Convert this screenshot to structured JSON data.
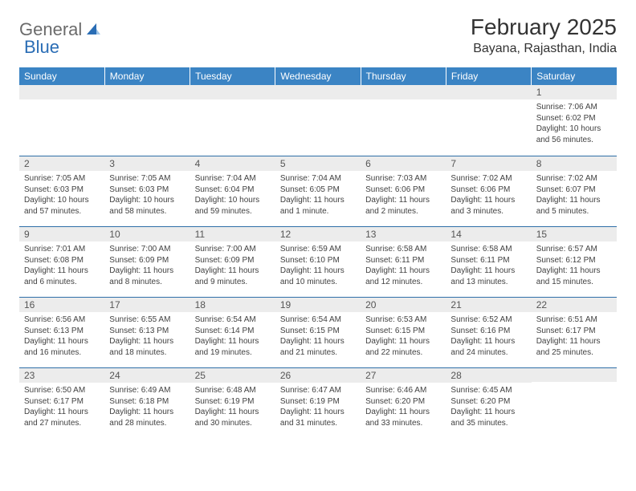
{
  "logo": {
    "text1": "General",
    "text2": "Blue"
  },
  "title": {
    "month": "February 2025",
    "location": "Bayana, Rajasthan, India"
  },
  "colors": {
    "header_bg": "#3b84c4",
    "header_fg": "#ffffff",
    "daynum_bg": "#ececec",
    "row_border": "#2f6fa8",
    "logo_gray": "#6b6b6b",
    "logo_blue": "#2a6db5"
  },
  "dayHeaders": [
    "Sunday",
    "Monday",
    "Tuesday",
    "Wednesday",
    "Thursday",
    "Friday",
    "Saturday"
  ],
  "weeks": [
    [
      {
        "n": "",
        "sr": "",
        "ss": "",
        "dl": ""
      },
      {
        "n": "",
        "sr": "",
        "ss": "",
        "dl": ""
      },
      {
        "n": "",
        "sr": "",
        "ss": "",
        "dl": ""
      },
      {
        "n": "",
        "sr": "",
        "ss": "",
        "dl": ""
      },
      {
        "n": "",
        "sr": "",
        "ss": "",
        "dl": ""
      },
      {
        "n": "",
        "sr": "",
        "ss": "",
        "dl": ""
      },
      {
        "n": "1",
        "sr": "Sunrise: 7:06 AM",
        "ss": "Sunset: 6:02 PM",
        "dl": "Daylight: 10 hours and 56 minutes."
      }
    ],
    [
      {
        "n": "2",
        "sr": "Sunrise: 7:05 AM",
        "ss": "Sunset: 6:03 PM",
        "dl": "Daylight: 10 hours and 57 minutes."
      },
      {
        "n": "3",
        "sr": "Sunrise: 7:05 AM",
        "ss": "Sunset: 6:03 PM",
        "dl": "Daylight: 10 hours and 58 minutes."
      },
      {
        "n": "4",
        "sr": "Sunrise: 7:04 AM",
        "ss": "Sunset: 6:04 PM",
        "dl": "Daylight: 10 hours and 59 minutes."
      },
      {
        "n": "5",
        "sr": "Sunrise: 7:04 AM",
        "ss": "Sunset: 6:05 PM",
        "dl": "Daylight: 11 hours and 1 minute."
      },
      {
        "n": "6",
        "sr": "Sunrise: 7:03 AM",
        "ss": "Sunset: 6:06 PM",
        "dl": "Daylight: 11 hours and 2 minutes."
      },
      {
        "n": "7",
        "sr": "Sunrise: 7:02 AM",
        "ss": "Sunset: 6:06 PM",
        "dl": "Daylight: 11 hours and 3 minutes."
      },
      {
        "n": "8",
        "sr": "Sunrise: 7:02 AM",
        "ss": "Sunset: 6:07 PM",
        "dl": "Daylight: 11 hours and 5 minutes."
      }
    ],
    [
      {
        "n": "9",
        "sr": "Sunrise: 7:01 AM",
        "ss": "Sunset: 6:08 PM",
        "dl": "Daylight: 11 hours and 6 minutes."
      },
      {
        "n": "10",
        "sr": "Sunrise: 7:00 AM",
        "ss": "Sunset: 6:09 PM",
        "dl": "Daylight: 11 hours and 8 minutes."
      },
      {
        "n": "11",
        "sr": "Sunrise: 7:00 AM",
        "ss": "Sunset: 6:09 PM",
        "dl": "Daylight: 11 hours and 9 minutes."
      },
      {
        "n": "12",
        "sr": "Sunrise: 6:59 AM",
        "ss": "Sunset: 6:10 PM",
        "dl": "Daylight: 11 hours and 10 minutes."
      },
      {
        "n": "13",
        "sr": "Sunrise: 6:58 AM",
        "ss": "Sunset: 6:11 PM",
        "dl": "Daylight: 11 hours and 12 minutes."
      },
      {
        "n": "14",
        "sr": "Sunrise: 6:58 AM",
        "ss": "Sunset: 6:11 PM",
        "dl": "Daylight: 11 hours and 13 minutes."
      },
      {
        "n": "15",
        "sr": "Sunrise: 6:57 AM",
        "ss": "Sunset: 6:12 PM",
        "dl": "Daylight: 11 hours and 15 minutes."
      }
    ],
    [
      {
        "n": "16",
        "sr": "Sunrise: 6:56 AM",
        "ss": "Sunset: 6:13 PM",
        "dl": "Daylight: 11 hours and 16 minutes."
      },
      {
        "n": "17",
        "sr": "Sunrise: 6:55 AM",
        "ss": "Sunset: 6:13 PM",
        "dl": "Daylight: 11 hours and 18 minutes."
      },
      {
        "n": "18",
        "sr": "Sunrise: 6:54 AM",
        "ss": "Sunset: 6:14 PM",
        "dl": "Daylight: 11 hours and 19 minutes."
      },
      {
        "n": "19",
        "sr": "Sunrise: 6:54 AM",
        "ss": "Sunset: 6:15 PM",
        "dl": "Daylight: 11 hours and 21 minutes."
      },
      {
        "n": "20",
        "sr": "Sunrise: 6:53 AM",
        "ss": "Sunset: 6:15 PM",
        "dl": "Daylight: 11 hours and 22 minutes."
      },
      {
        "n": "21",
        "sr": "Sunrise: 6:52 AM",
        "ss": "Sunset: 6:16 PM",
        "dl": "Daylight: 11 hours and 24 minutes."
      },
      {
        "n": "22",
        "sr": "Sunrise: 6:51 AM",
        "ss": "Sunset: 6:17 PM",
        "dl": "Daylight: 11 hours and 25 minutes."
      }
    ],
    [
      {
        "n": "23",
        "sr": "Sunrise: 6:50 AM",
        "ss": "Sunset: 6:17 PM",
        "dl": "Daylight: 11 hours and 27 minutes."
      },
      {
        "n": "24",
        "sr": "Sunrise: 6:49 AM",
        "ss": "Sunset: 6:18 PM",
        "dl": "Daylight: 11 hours and 28 minutes."
      },
      {
        "n": "25",
        "sr": "Sunrise: 6:48 AM",
        "ss": "Sunset: 6:19 PM",
        "dl": "Daylight: 11 hours and 30 minutes."
      },
      {
        "n": "26",
        "sr": "Sunrise: 6:47 AM",
        "ss": "Sunset: 6:19 PM",
        "dl": "Daylight: 11 hours and 31 minutes."
      },
      {
        "n": "27",
        "sr": "Sunrise: 6:46 AM",
        "ss": "Sunset: 6:20 PM",
        "dl": "Daylight: 11 hours and 33 minutes."
      },
      {
        "n": "28",
        "sr": "Sunrise: 6:45 AM",
        "ss": "Sunset: 6:20 PM",
        "dl": "Daylight: 11 hours and 35 minutes."
      },
      {
        "n": "",
        "sr": "",
        "ss": "",
        "dl": ""
      }
    ]
  ]
}
